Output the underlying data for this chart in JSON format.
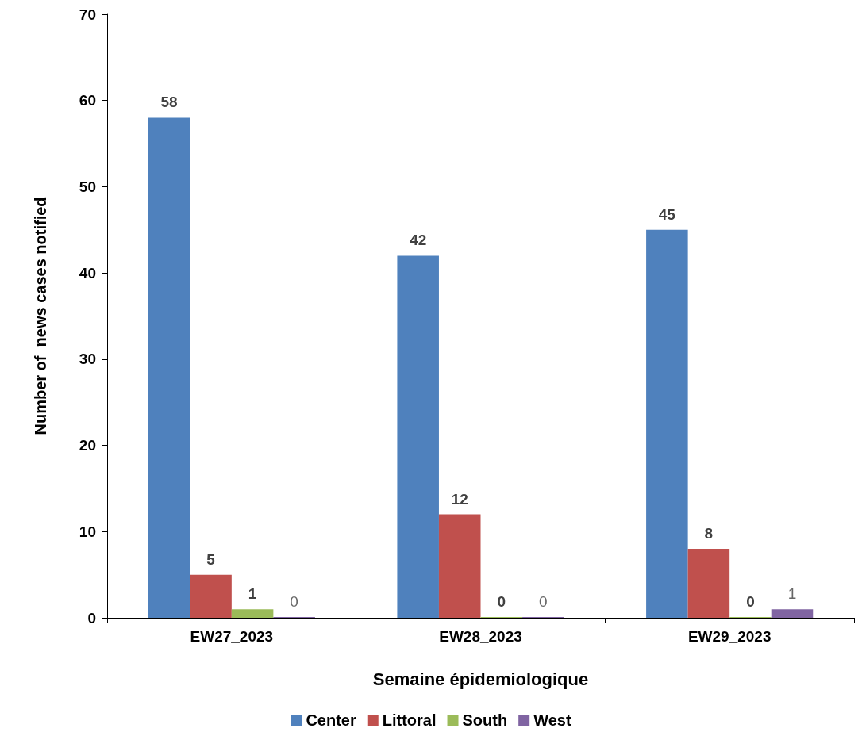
{
  "chart_data": {
    "type": "bar",
    "xlabel": "Semaine épidemiologique",
    "ylabel": "Number of  news cases notified",
    "categories": [
      "EW27_2023",
      "EW28_2023",
      "EW29_2023"
    ],
    "series": [
      {
        "name": "Center",
        "color": "#4f81bd",
        "values": [
          58,
          42,
          45
        ]
      },
      {
        "name": "Littoral",
        "color": "#c0504d",
        "values": [
          5,
          12,
          8
        ]
      },
      {
        "name": "South",
        "color": "#9bbb59",
        "values": [
          1,
          0,
          0
        ]
      },
      {
        "name": "West",
        "color": "#8064a2",
        "values": [
          0,
          0,
          1
        ]
      }
    ],
    "ylim": [
      0,
      70
    ],
    "yticks": [
      0,
      10,
      20,
      30,
      40,
      50,
      60,
      70
    ],
    "grid": false,
    "legend": "bottom",
    "data_labels": true
  }
}
